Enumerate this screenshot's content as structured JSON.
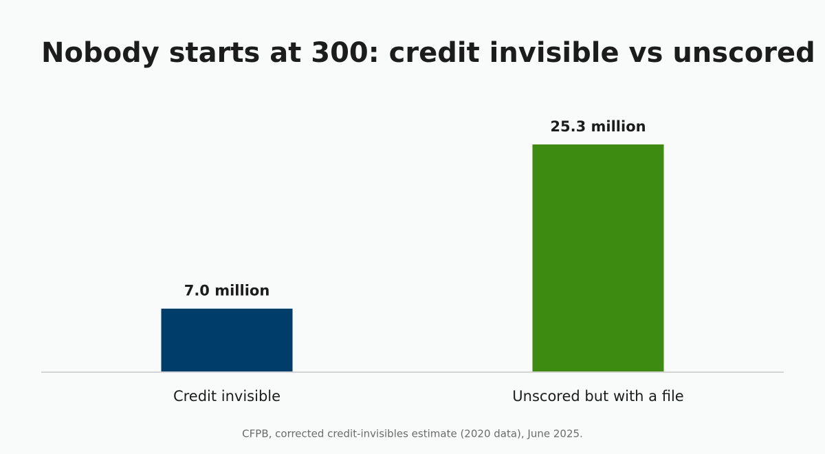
{
  "chart_data": {
    "type": "bar",
    "title": "Nobody starts at 300: credit invisible vs unscored",
    "categories": [
      "Credit invisible",
      "Unscored but with a file"
    ],
    "values": [
      7.0,
      25.3
    ],
    "value_labels": [
      "7.0 million",
      "25.3 million"
    ],
    "colors": [
      "#003d6b",
      "#3d8b10"
    ],
    "source": "CFPB, corrected credit-invisibles estimate (2020 data), June 2025."
  }
}
